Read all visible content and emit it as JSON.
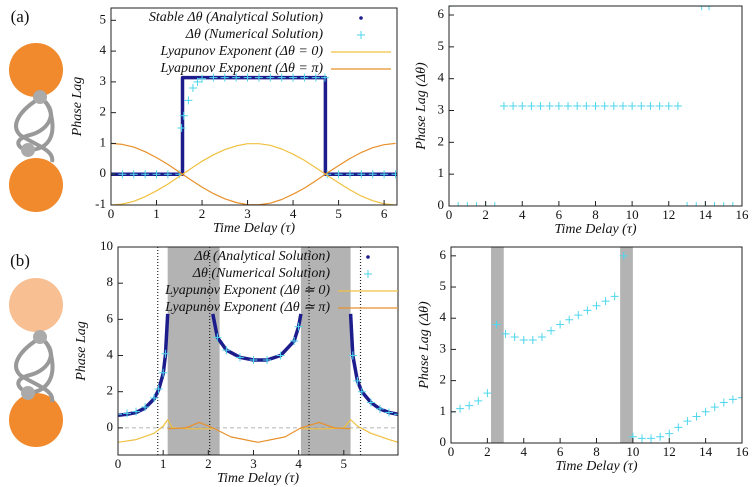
{
  "chart_data": [
    {
      "type": "line",
      "panel_label": "(a)",
      "xlabel": "Time Delay (τ)",
      "ylabel": "Phase Lag",
      "xlim": [
        0,
        6.2832
      ],
      "ylim": [
        -1,
        5.4
      ],
      "xticks": [
        0,
        1,
        2,
        3,
        4,
        5,
        6
      ],
      "yticks": [
        -1,
        0,
        1,
        2,
        3,
        4,
        5
      ],
      "legend": "upper left",
      "series": [
        {
          "name": "Stable Δθ (Analytical Solution)",
          "color": "#1c1c8c",
          "style": "dots",
          "x": [
            0,
            0.5,
            1,
            1.5,
            1.57,
            1.57,
            2,
            2.5,
            3,
            3.5,
            4,
            4.5,
            4.71,
            4.71,
            5,
            5.5,
            6,
            6.28
          ],
          "values": [
            0,
            0,
            0,
            0,
            0,
            3.14,
            3.14,
            3.14,
            3.14,
            3.14,
            3.14,
            3.14,
            3.14,
            0,
            0,
            0,
            0,
            0
          ]
        },
        {
          "name": "Δθ (Numerical Solution)",
          "color": "#4fd6ec",
          "style": "points",
          "x": [
            0,
            0.25,
            0.5,
            0.75,
            1,
            1.25,
            1.5,
            1.55,
            1.6,
            1.7,
            1.8,
            1.9,
            2,
            2.25,
            2.5,
            2.75,
            3,
            3.25,
            3.5,
            3.75,
            4,
            4.25,
            4.5,
            4.7,
            4.75,
            5,
            5.25,
            5.5,
            5.75,
            6,
            6.25
          ],
          "values": [
            0,
            0,
            0,
            0,
            0,
            0,
            0,
            1.5,
            1.9,
            2.4,
            2.8,
            3.0,
            3.1,
            3.14,
            3.14,
            3.14,
            3.14,
            3.14,
            3.14,
            3.14,
            3.14,
            3.14,
            3.14,
            3.14,
            0,
            0,
            0,
            0,
            0,
            0,
            0
          ]
        },
        {
          "name": "Lyapunov Exponent (Δθ = 0)",
          "color": "#f0c040",
          "style": "line",
          "x": [
            0,
            0.25,
            0.5,
            0.75,
            1,
            1.25,
            1.5,
            1.75,
            2,
            2.25,
            2.5,
            2.75,
            3,
            3.25,
            3.5,
            3.75,
            4,
            4.25,
            4.5,
            4.75,
            5,
            5.25,
            5.5,
            5.75,
            6,
            6.25
          ],
          "values": [
            -1,
            -0.97,
            -0.88,
            -0.73,
            -0.54,
            -0.32,
            -0.07,
            0.18,
            0.42,
            0.63,
            0.8,
            0.92,
            0.99,
            0.99,
            0.94,
            0.82,
            0.65,
            0.45,
            0.21,
            -0.04,
            -0.28,
            -0.51,
            -0.71,
            -0.86,
            -0.96,
            -1
          ]
        },
        {
          "name": "Lyapunov Exponent (Δθ = π)",
          "color": "#e8902a",
          "style": "line",
          "x": [
            0,
            0.25,
            0.5,
            0.75,
            1,
            1.25,
            1.5,
            1.75,
            2,
            2.25,
            2.5,
            2.75,
            3,
            3.25,
            3.5,
            3.75,
            4,
            4.25,
            4.5,
            4.75,
            5,
            5.25,
            5.5,
            5.75,
            6,
            6.25
          ],
          "values": [
            1,
            0.97,
            0.88,
            0.73,
            0.54,
            0.32,
            0.07,
            -0.18,
            -0.42,
            -0.63,
            -0.8,
            -0.92,
            -0.99,
            -0.99,
            -0.94,
            -0.82,
            -0.65,
            -0.45,
            -0.21,
            0.04,
            0.28,
            0.51,
            0.71,
            0.86,
            0.96,
            1
          ]
        }
      ]
    },
    {
      "type": "scatter",
      "xlabel": "Time Delay (τ)",
      "ylabel": "Phase Lag (Δθ)",
      "xlim": [
        0,
        16
      ],
      "ylim": [
        0,
        6.2832
      ],
      "xticks": [
        0,
        2,
        4,
        6,
        8,
        10,
        12,
        14,
        16
      ],
      "yticks": [
        0,
        1,
        2,
        3,
        4,
        5,
        6
      ],
      "series": [
        {
          "color": "#4fd6ec",
          "style": "points",
          "x": [
            0,
            0.5,
            1,
            1.5,
            2,
            2.5,
            3,
            3.5,
            4,
            4.5,
            5,
            5.5,
            6,
            6.5,
            7,
            7.5,
            8,
            8.5,
            9,
            9.5,
            10,
            10.5,
            11,
            11.5,
            12,
            12.5,
            13,
            13.5,
            14,
            14.5,
            15,
            15.5,
            16
          ],
          "values": [
            0,
            0,
            0,
            0,
            0,
            0,
            3.14,
            3.14,
            3.14,
            3.14,
            3.14,
            3.14,
            3.14,
            3.14,
            3.14,
            3.14,
            3.14,
            3.14,
            3.14,
            3.14,
            3.14,
            3.14,
            3.14,
            3.14,
            3.14,
            3.14,
            0,
            0,
            0,
            0,
            0,
            0,
            0
          ]
        },
        {
          "color": "#4fd6ec",
          "style": "points",
          "x": [
            0,
            13.8,
            14.2
          ],
          "values": [
            6.28,
            6.28,
            6.28
          ]
        }
      ]
    },
    {
      "type": "line",
      "panel_label": "(b)",
      "xlabel": "Time Delay (τ)",
      "ylabel": "Phase Lag",
      "xlim": [
        0,
        6.2
      ],
      "ylim": [
        -1.5,
        10
      ],
      "xticks": [
        0,
        1,
        2,
        3,
        4,
        5
      ],
      "yticks": [
        0,
        2,
        4,
        6,
        8,
        10
      ],
      "legend": "upper left",
      "shaded_regions": [
        [
          1.1,
          2.25
        ],
        [
          4.05,
          5.15
        ]
      ],
      "vlines": [
        0.88,
        2.03,
        4.23,
        5.37
      ],
      "hlines": [
        0
      ],
      "series": [
        {
          "name": "Δθ (Analytical Solution)",
          "color": "#1c1c8c",
          "style": "dots",
          "x": [
            0,
            0.2,
            0.4,
            0.6,
            0.8,
            0.9,
            1.0,
            1.05,
            1.1,
            1.6,
            2.1,
            2.2,
            2.4,
            2.7,
            3.0,
            3.3,
            3.6,
            3.9,
            4.0,
            4.05,
            4.6,
            5.15,
            5.2,
            5.3,
            5.4,
            5.6,
            5.8,
            6.0,
            6.2
          ],
          "values": [
            0.7,
            0.75,
            0.85,
            1.1,
            1.6,
            2.1,
            3.0,
            4.0,
            6.3,
            null,
            6.3,
            5.0,
            4.3,
            3.9,
            3.75,
            3.75,
            4.0,
            4.8,
            5.6,
            6.3,
            null,
            6.3,
            4.0,
            2.6,
            2.0,
            1.4,
            1.05,
            0.85,
            0.75
          ]
        },
        {
          "name": "Δθ (Numerical Solution)",
          "color": "#4fd6ec",
          "style": "points",
          "x": [
            0,
            0.2,
            0.4,
            0.6,
            0.8,
            0.9,
            1.0,
            1.05,
            2.2,
            2.4,
            2.7,
            3.0,
            3.3,
            3.6,
            3.9,
            4.0,
            5.2,
            5.3,
            5.4,
            5.6,
            5.8,
            6.0,
            6.2
          ],
          "values": [
            0.75,
            0.8,
            0.9,
            1.15,
            1.65,
            2.15,
            3.05,
            4.1,
            5.0,
            4.3,
            3.9,
            3.75,
            3.75,
            4.0,
            4.8,
            5.6,
            4.0,
            2.6,
            2.0,
            1.4,
            1.05,
            0.85,
            0.75
          ]
        },
        {
          "name": "Lyapunov Exponent (Δθ ≃ 0)",
          "color": "#f0c040",
          "style": "line",
          "x": [
            0,
            0.4,
            0.8,
            1.0,
            1.1,
            1.2,
            1.6,
            2.1,
            3.1,
            4.05,
            4.6,
            5.0,
            5.15,
            5.3,
            5.6,
            6.0,
            6.2
          ],
          "values": [
            -0.8,
            -0.65,
            -0.3,
            0.1,
            0.45,
            0.0,
            -0.05,
            -0.05,
            null,
            -0.05,
            -0.05,
            0.0,
            0.45,
            0.1,
            -0.3,
            -0.65,
            -0.8
          ]
        },
        {
          "name": "Lyapunov Exponent (Δθ ≃ π)",
          "color": "#e8902a",
          "style": "line",
          "x": [
            1.1,
            1.5,
            1.8,
            2.1,
            2.5,
            3.1,
            3.7,
            4.05,
            4.45,
            4.8,
            5.15
          ],
          "values": [
            -0.05,
            0.0,
            0.3,
            0.0,
            -0.5,
            -0.8,
            -0.5,
            0.0,
            0.3,
            0.0,
            -0.05
          ]
        }
      ]
    },
    {
      "type": "scatter",
      "xlabel": "Time Delay (τ)",
      "ylabel": "Phase Lag (Δθ)",
      "xlim": [
        0,
        16
      ],
      "ylim": [
        0,
        6.2832
      ],
      "xticks": [
        0,
        2,
        4,
        6,
        8,
        10,
        12,
        14,
        16
      ],
      "yticks": [
        0,
        1,
        2,
        3,
        4,
        5,
        6
      ],
      "shaded_regions": [
        [
          2.2,
          2.9
        ],
        [
          9.3,
          10.0
        ]
      ],
      "series": [
        {
          "color": "#4fd6ec",
          "style": "points",
          "x": [
            0,
            0.5,
            1,
            1.5,
            2,
            2.5,
            3,
            3.5,
            4,
            4.5,
            5,
            5.5,
            6,
            6.5,
            7,
            7.5,
            8,
            8.5,
            9,
            9.5,
            10,
            10.5,
            11,
            11.5,
            12,
            12.5,
            13,
            13.5,
            14,
            14.5,
            15,
            15.5,
            16
          ],
          "values": [
            1.0,
            1.1,
            1.2,
            1.35,
            1.6,
            3.8,
            3.5,
            3.4,
            3.3,
            3.3,
            3.4,
            3.6,
            3.8,
            3.95,
            4.1,
            4.25,
            4.4,
            4.55,
            4.7,
            6.0,
            0.2,
            0.15,
            0.15,
            0.2,
            0.3,
            0.5,
            0.7,
            0.85,
            1.0,
            1.15,
            1.3,
            1.4,
            1.45
          ]
        }
      ]
    }
  ]
}
